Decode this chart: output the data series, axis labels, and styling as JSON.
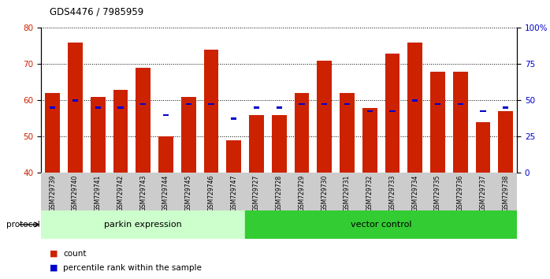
{
  "title": "GDS4476 / 7985959",
  "samples": [
    "GSM729739",
    "GSM729740",
    "GSM729741",
    "GSM729742",
    "GSM729743",
    "GSM729744",
    "GSM729745",
    "GSM729746",
    "GSM729747",
    "GSM729727",
    "GSM729728",
    "GSM729729",
    "GSM729730",
    "GSM729731",
    "GSM729732",
    "GSM729733",
    "GSM729734",
    "GSM729735",
    "GSM729736",
    "GSM729737",
    "GSM729738"
  ],
  "count_values": [
    62,
    76,
    61,
    63,
    69,
    50,
    61,
    74,
    49,
    56,
    56,
    62,
    71,
    62,
    58,
    73,
    76,
    68,
    68,
    54,
    57
  ],
  "percentile_values": [
    58,
    60,
    58,
    58,
    59,
    56,
    59,
    59,
    55,
    58,
    58,
    59,
    59,
    59,
    57,
    57,
    60,
    59,
    59,
    57,
    58
  ],
  "groups": {
    "parkin expression": [
      0,
      1,
      2,
      3,
      4,
      5,
      6,
      7,
      8
    ],
    "vector control": [
      9,
      10,
      11,
      12,
      13,
      14,
      15,
      16,
      17,
      18,
      19,
      20
    ]
  },
  "ylim_left": [
    40,
    80
  ],
  "ylim_right": [
    0,
    100
  ],
  "yticks_left": [
    40,
    50,
    60,
    70,
    80
  ],
  "ytick_labels_right": [
    "0",
    "25",
    "50",
    "75",
    "100%"
  ],
  "bar_color": "#cc2200",
  "percentile_color": "#0000cc",
  "group1_color": "#ccffcc",
  "group2_color": "#33cc33",
  "tick_area_color": "#cccccc",
  "protocol_label": "protocol",
  "group1_label": "parkin expression",
  "group2_label": "vector control",
  "legend_count": "count",
  "legend_percentile": "percentile rank within the sample"
}
